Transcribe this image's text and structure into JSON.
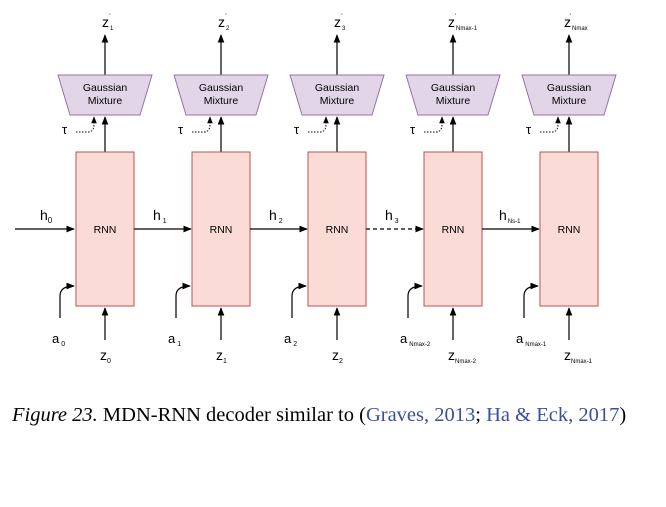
{
  "rnn_label": "RNN",
  "mixture": {
    "line1": "Gaussian",
    "line2": "Mixture"
  },
  "tau": "τ",
  "columns": [
    {
      "z_out": "z",
      "z_out_prime": "'",
      "z_out_sub": "1",
      "z_in": "z",
      "z_in_sub": "0",
      "a": "a",
      "a_sub": "0",
      "h": "h",
      "h_sub": "1"
    },
    {
      "z_out": "z",
      "z_out_prime": "'",
      "z_out_sub": "2",
      "z_in": "z",
      "z_in_sub": "1",
      "a": "a",
      "a_sub": "1",
      "h": "h",
      "h_sub": "2"
    },
    {
      "z_out": "z",
      "z_out_prime": "'",
      "z_out_sub": "3",
      "z_in": "z",
      "z_in_sub": "2",
      "a": "a",
      "a_sub": "2",
      "h": "h",
      "h_sub": "3"
    },
    {
      "z_out": "z",
      "z_out_prime": "'",
      "z_out_sub": "Nmax-1",
      "z_in": "z",
      "z_in_sub": "Nmax-2",
      "a": "a",
      "a_sub": "Nmax-2",
      "h": "h",
      "h_sub": "Ns-1"
    },
    {
      "z_out": "z",
      "z_out_prime": "'",
      "z_out_sub": "Nmax",
      "z_in": "z",
      "z_in_sub": "Nmax-1",
      "a": "a",
      "a_sub": "Nmax-1",
      "h": "",
      "h_sub": ""
    }
  ],
  "h0": {
    "text": "h",
    "sub": "0"
  },
  "caption": {
    "figure_label": "Figure 23.",
    "text": " MDN-RNN decoder similar to (",
    "cite1": "Graves, 2013",
    "sep": "; ",
    "cite2": "Ha & Eck, 2017",
    "end": ")"
  },
  "colors": {
    "rnn_fill": "#fadbd6",
    "rnn_stroke": "#b85450",
    "mixture_fill": "#e1d5e7",
    "mixture_stroke": "#9673a6",
    "cite": "#3b4f9e"
  }
}
